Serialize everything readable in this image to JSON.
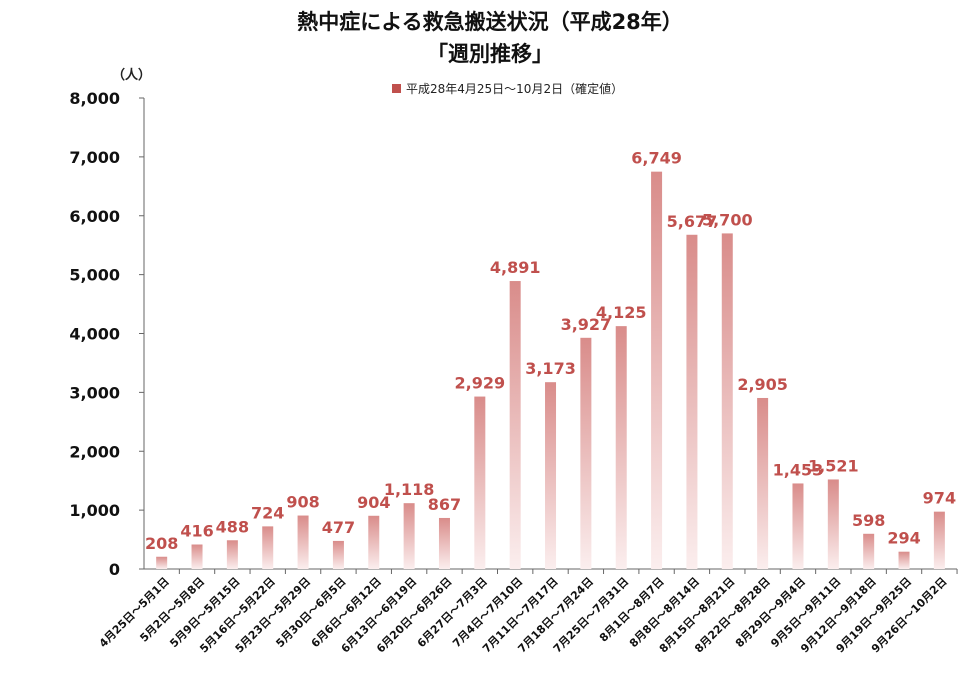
{
  "chart_data": {
    "type": "bar",
    "title": "熱中症による救急搬送状況（平成28年）",
    "subtitle": "「週別推移」",
    "ylabel": "（人）",
    "ylim": [
      0,
      8000
    ],
    "yticks": [
      "0",
      "1,000",
      "2,000",
      "3,000",
      "4,000",
      "5,000",
      "6,000",
      "7,000",
      "8,000"
    ],
    "legend_position": "top-center",
    "bar_color": "#c0504d",
    "label_color": "#c0504d",
    "categories": [
      "4月25日～5月1日",
      "5月2日～5月8日",
      "5月9日～5月15日",
      "5月16日～5月22日",
      "5月23日～5月29日",
      "5月30日～6月5日",
      "6月6日～6月12日",
      "6月13日～6月19日",
      "6月20日～6月26日",
      "6月27日～7月3日",
      "7月4日～7月10日",
      "7月11日～7月17日",
      "7月18日～7月24日",
      "7月25日～7月31日",
      "8月1日～8月7日",
      "8月8日～8月14日",
      "8月15日～8月21日",
      "8月22日～8月28日",
      "8月29日～9月4日",
      "9月5日～9月11日",
      "9月12日～9月18日",
      "9月19日～9月25日",
      "9月26日～10月2日"
    ],
    "series": [
      {
        "name": "平成28年4月25日～10月2日（確定値）",
        "values": [
          208,
          416,
          488,
          724,
          908,
          477,
          904,
          1118,
          867,
          2929,
          4891,
          3173,
          3927,
          4125,
          6749,
          5677,
          5700,
          2905,
          1453,
          1521,
          598,
          294,
          974
        ],
        "labels": [
          "208",
          "416",
          "488",
          "724",
          "908",
          "477",
          "904",
          "1,118",
          "867",
          "2,929",
          "4,891",
          "3,173",
          "3,927",
          "4,125",
          "6,749",
          "5,677",
          "5,700",
          "2,905",
          "1,453",
          "1,521",
          "598",
          "294",
          "974"
        ]
      }
    ]
  }
}
